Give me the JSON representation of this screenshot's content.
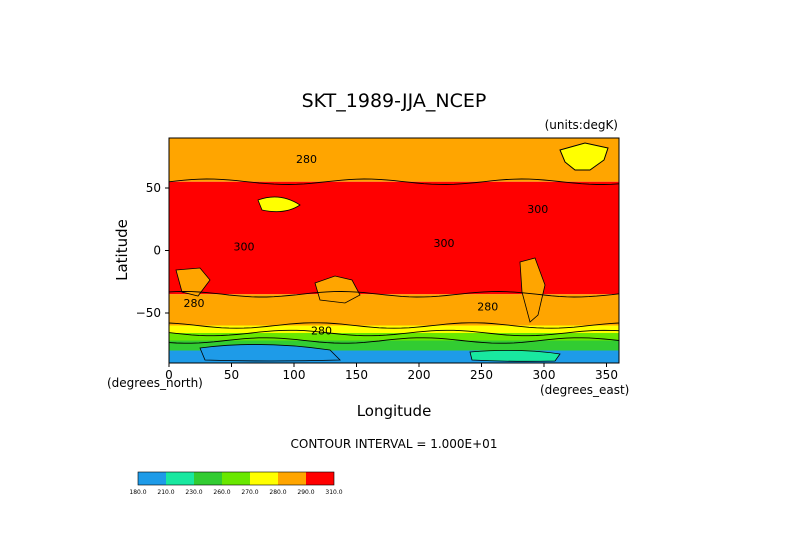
{
  "chart_data": {
    "type": "heatmap",
    "title": "SKT_1989-JJA_NCEP",
    "units_note": "(units:degK)",
    "xlabel": "Longitude",
    "ylabel": "Latitude",
    "x_unit_note": "(degrees_east)",
    "y_unit_note": "(degrees_north)",
    "xlim": [
      0,
      360
    ],
    "ylim": [
      -90,
      90
    ],
    "x_ticks": [
      0,
      50,
      100,
      150,
      200,
      250,
      300,
      350
    ],
    "x_tick_labels": [
      "0",
      "50",
      "100",
      "150",
      "200",
      "250",
      "300",
      "350"
    ],
    "y_ticks": [
      50,
      0,
      -50
    ],
    "y_tick_labels": [
      "50",
      "0",
      "−50"
    ],
    "contour_interval_text": "CONTOUR INTERVAL = 1.000E+01",
    "contour_labels": [
      {
        "text": "280",
        "lon": 110,
        "lat": 70
      },
      {
        "text": "300",
        "lon": 295,
        "lat": 30
      },
      {
        "text": "300",
        "lon": 220,
        "lat": 3
      },
      {
        "text": "300",
        "lon": 60,
        "lat": 0
      },
      {
        "text": "280",
        "lon": 20,
        "lat": -45
      },
      {
        "text": "280",
        "lon": 255,
        "lat": -48
      },
      {
        "text": "280",
        "lon": 122,
        "lat": -67
      }
    ],
    "zones": [
      {
        "lat_top": 90,
        "lat_bottom": 55,
        "level": "280-290"
      },
      {
        "lat_top": 55,
        "lat_bottom": -35,
        "level": "300-310"
      },
      {
        "lat_top": -35,
        "lat_bottom": -60,
        "level": "280-290"
      },
      {
        "lat_top": -60,
        "lat_bottom": -66,
        "level": "270-280"
      },
      {
        "lat_top": -66,
        "lat_bottom": -72,
        "level": "260-270"
      },
      {
        "lat_top": -72,
        "lat_bottom": -80,
        "level": "230-260"
      },
      {
        "lat_top": -80,
        "lat_bottom": -90,
        "level": "190-230"
      }
    ],
    "legend": {
      "colors": [
        "#1e9be8",
        "#19e8a0",
        "#32cc32",
        "#69e800",
        "#ffff00",
        "#ffa500",
        "#ff0000"
      ],
      "labels": [
        "180.0",
        "210.0",
        "230.0",
        "260.0",
        "270.0",
        "280.0",
        "290.0",
        "310.0"
      ]
    },
    "grid": false
  }
}
